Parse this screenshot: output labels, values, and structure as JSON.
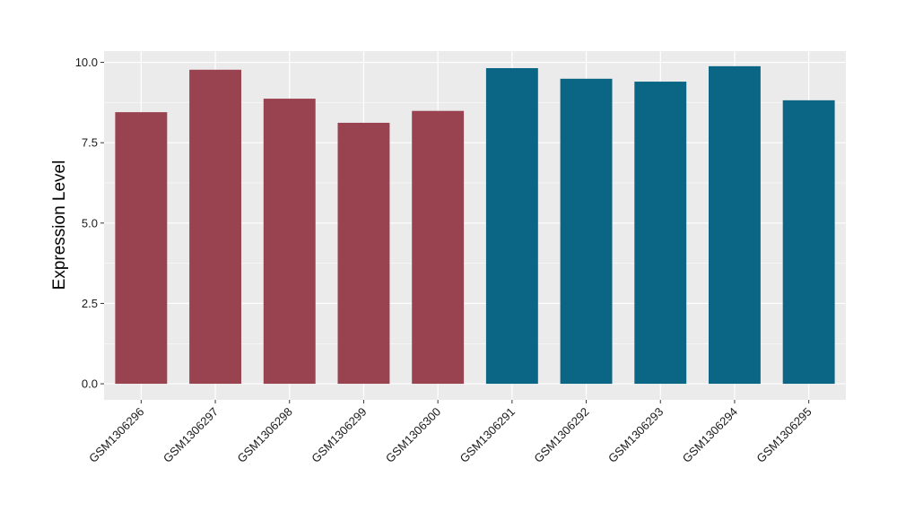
{
  "chart_data": {
    "type": "bar",
    "title": "",
    "xlabel": "",
    "ylabel": "Expression Level",
    "ylim": [
      -0.5,
      10.35
    ],
    "yticks": [
      0.0,
      2.5,
      5.0,
      7.5,
      10.0
    ],
    "ytick_labels": [
      "0.0",
      "2.5",
      "5.0",
      "7.5",
      "10.0"
    ],
    "grid": true,
    "legend": "none",
    "categories": [
      "GSM1306296",
      "GSM1306297",
      "GSM1306298",
      "GSM1306299",
      "GSM1306300",
      "GSM1306291",
      "GSM1306292",
      "GSM1306293",
      "GSM1306294",
      "GSM1306295"
    ],
    "values": [
      8.45,
      9.77,
      8.87,
      8.12,
      8.49,
      9.82,
      9.49,
      9.4,
      9.88,
      8.82
    ],
    "bar_colors": [
      "#9a4350",
      "#9a4350",
      "#9a4350",
      "#9a4350",
      "#9a4350",
      "#0b6585",
      "#0b6585",
      "#0b6585",
      "#0b6585",
      "#0b6585"
    ],
    "panel_background": "#ebebeb",
    "grid_color": "#ffffff"
  }
}
